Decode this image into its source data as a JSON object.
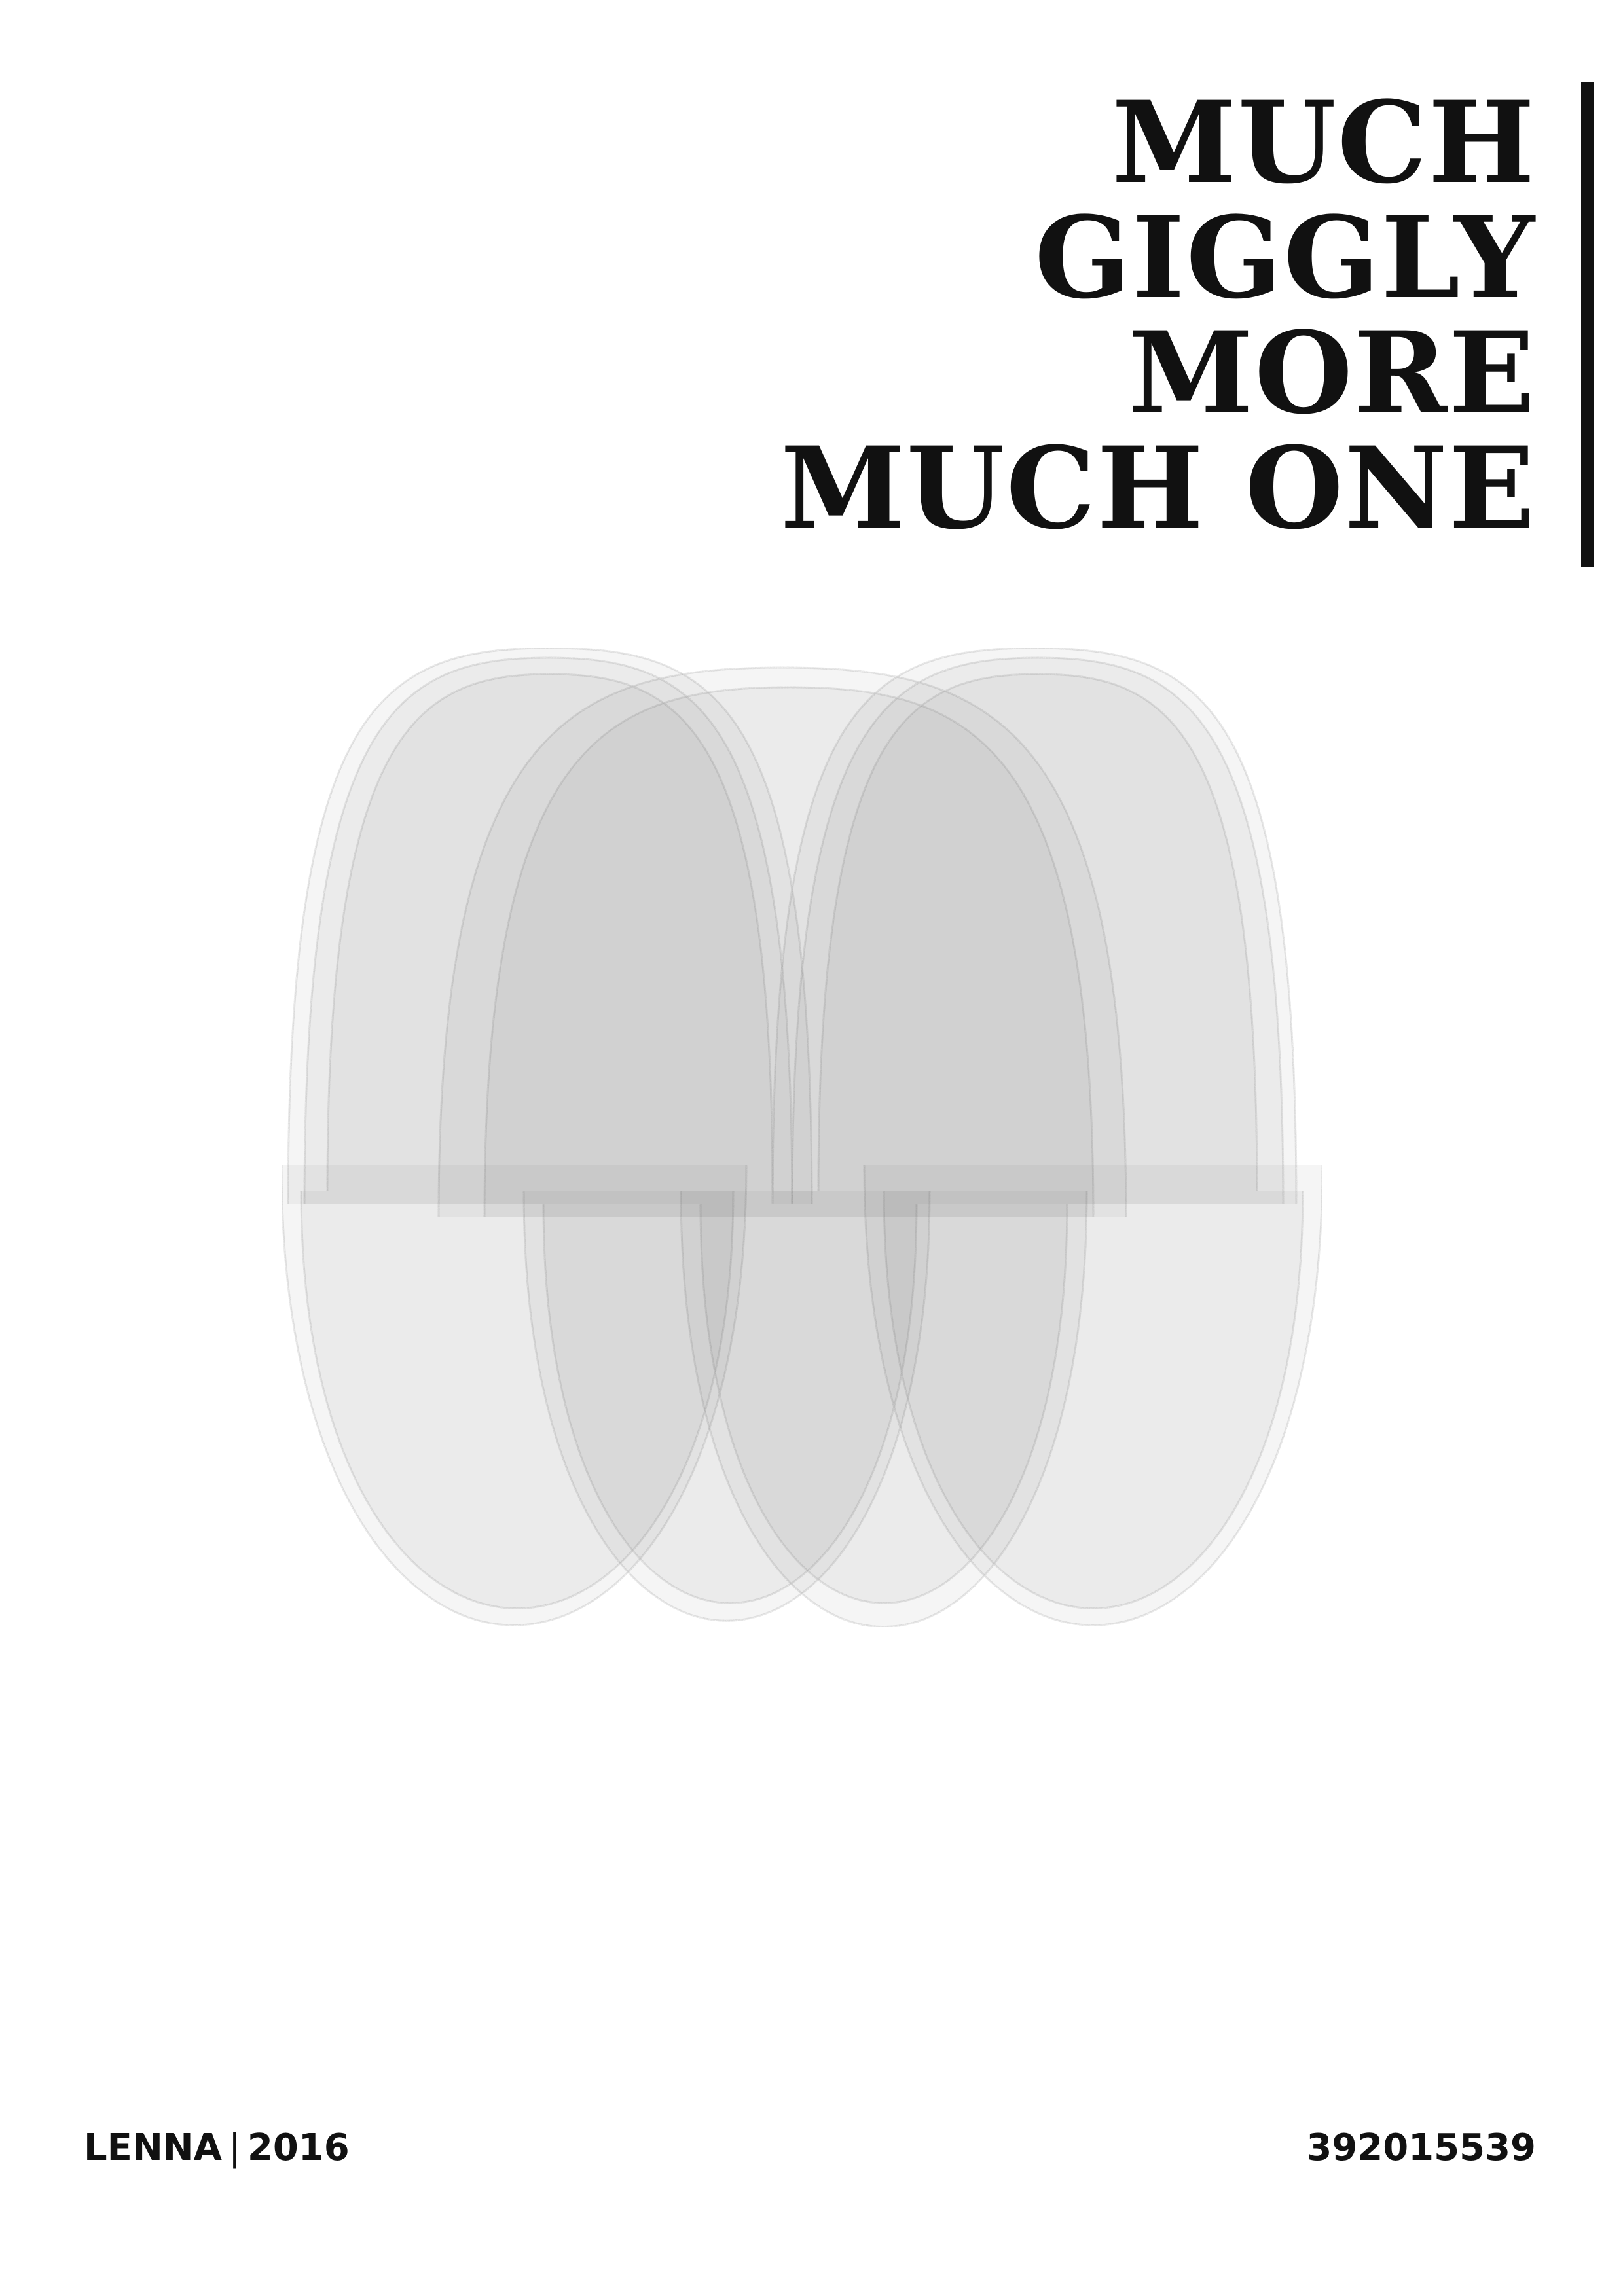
{
  "poster": {
    "title_lines": [
      "MUCH",
      "GIGGLY",
      "MORE",
      "MUCH ONE"
    ],
    "artwork": "attractor-shell-figure",
    "footer": {
      "author": "LENNA",
      "separator": "|",
      "year": "2016",
      "serial": "392015539"
    }
  },
  "colors": {
    "ink": "#111111",
    "paper": "#ffffff"
  }
}
